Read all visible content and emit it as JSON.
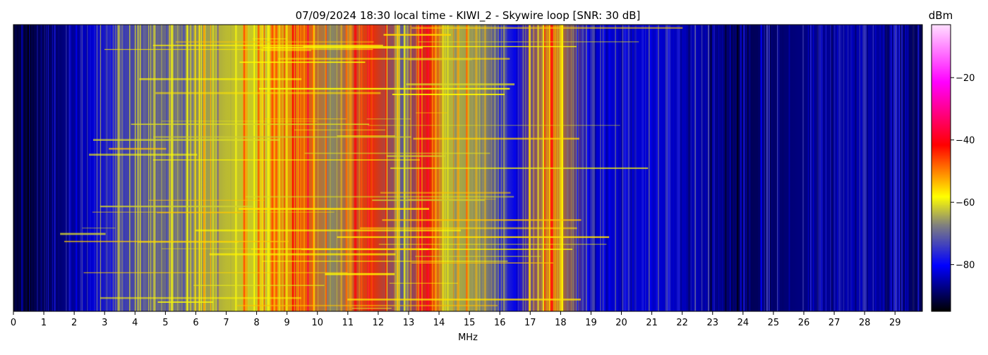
{
  "chart_data": {
    "type": "heatmap",
    "title": "07/09/2024 18:30 local time - KIWI_2 - Skywire loop [SNR: 30 dB]",
    "xlabel": "MHz",
    "ylabel": "",
    "xlim": [
      0,
      29.9
    ],
    "x_ticks": [
      "0",
      "1",
      "2",
      "3",
      "4",
      "5",
      "6",
      "7",
      "8",
      "9",
      "10",
      "11",
      "12",
      "13",
      "14",
      "15",
      "16",
      "17",
      "18",
      "19",
      "20",
      "21",
      "22",
      "23",
      "24",
      "25",
      "26",
      "27",
      "28",
      "29"
    ],
    "colorbar": {
      "label": "dBm",
      "range": [
        -95,
        -3
      ],
      "ticks": [
        "−20",
        "−40",
        "−60",
        "−80"
      ],
      "tick_values": [
        -20,
        -40,
        -60,
        -80
      ],
      "colormap": [
        "#000000",
        "#0000ff",
        "#7f7f7f",
        "#ffff00",
        "#ff0000",
        "#ff00ff",
        "#ffdfff"
      ]
    },
    "band_profile_mhz": [
      {
        "x": 0.0,
        "level_dbm": -92
      },
      {
        "x": 1.5,
        "level_dbm": -88
      },
      {
        "x": 2.6,
        "level_dbm": -82
      },
      {
        "x": 3.5,
        "level_dbm": -74
      },
      {
        "x": 5.9,
        "level_dbm": -66
      },
      {
        "x": 7.0,
        "level_dbm": -62
      },
      {
        "x": 8.5,
        "level_dbm": -60
      },
      {
        "x": 9.6,
        "level_dbm": -48
      },
      {
        "x": 10.5,
        "level_dbm": -66
      },
      {
        "x": 11.8,
        "level_dbm": -45
      },
      {
        "x": 12.8,
        "level_dbm": -70
      },
      {
        "x": 13.7,
        "level_dbm": -44
      },
      {
        "x": 14.2,
        "level_dbm": -62
      },
      {
        "x": 15.5,
        "level_dbm": -66
      },
      {
        "x": 16.5,
        "level_dbm": -80
      },
      {
        "x": 17.7,
        "level_dbm": -52
      },
      {
        "x": 19.0,
        "level_dbm": -82
      },
      {
        "x": 21.0,
        "level_dbm": -82
      },
      {
        "x": 22.5,
        "level_dbm": -84
      },
      {
        "x": 24.0,
        "level_dbm": -90
      },
      {
        "x": 26.0,
        "level_dbm": -87
      },
      {
        "x": 28.0,
        "level_dbm": -84
      },
      {
        "x": 29.9,
        "level_dbm": -90
      }
    ]
  }
}
